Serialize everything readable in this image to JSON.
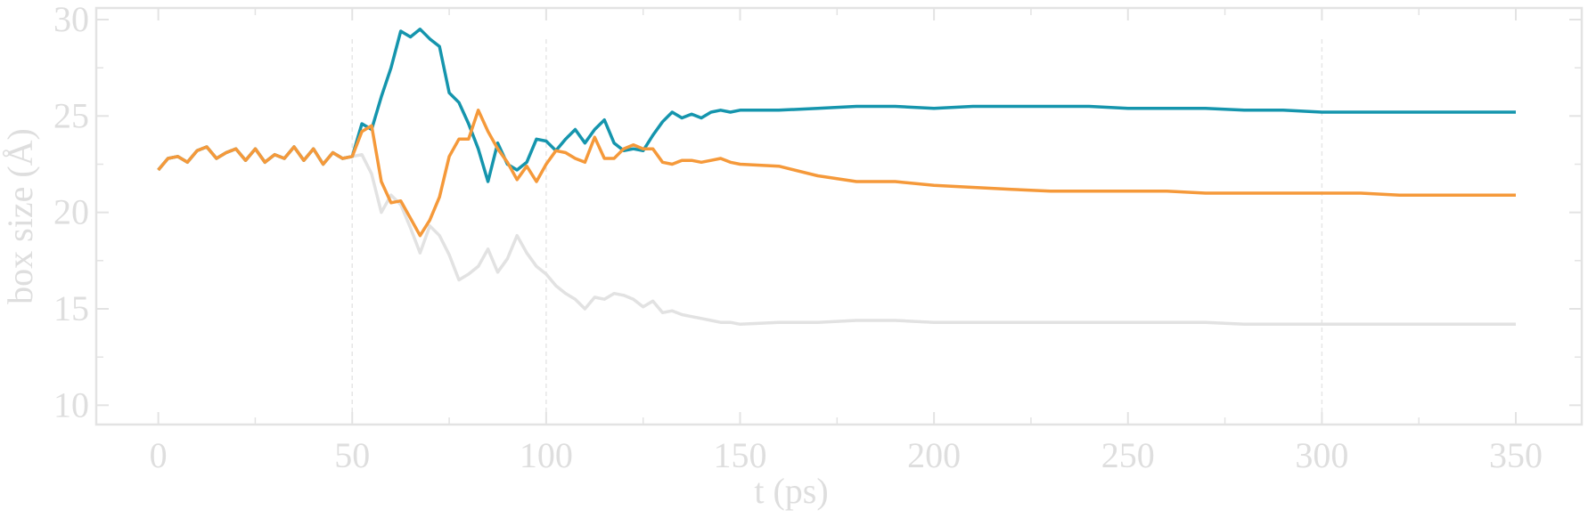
{
  "chart_data": {
    "type": "line",
    "xlabel": "t (ps)",
    "ylabel": "box size (Å)",
    "x": [
      0,
      2.5,
      5,
      7.5,
      10,
      12.5,
      15,
      17.5,
      20,
      22.5,
      25,
      27.5,
      30,
      32.5,
      35,
      37.5,
      40,
      42.5,
      45,
      47.5,
      50,
      52.5,
      55,
      57.5,
      60,
      62.5,
      65,
      67.5,
      70,
      72.5,
      75,
      77.5,
      80,
      82.5,
      85,
      87.5,
      90,
      92.5,
      95,
      97.5,
      100,
      102.5,
      105,
      107.5,
      110,
      112.5,
      115,
      117.5,
      120,
      122.5,
      125,
      127.5,
      130,
      132.5,
      135,
      137.5,
      140,
      142.5,
      145,
      147.5,
      150,
      160,
      170,
      180,
      190,
      200,
      210,
      220,
      230,
      240,
      250,
      260,
      270,
      280,
      290,
      300,
      310,
      320,
      330,
      340,
      350
    ],
    "series": [
      {
        "color": "#e2e2e2",
        "values": [
          22.2,
          22.8,
          22.9,
          22.6,
          23.2,
          23.4,
          22.8,
          23.1,
          23.3,
          22.7,
          23.3,
          22.6,
          23.0,
          22.8,
          23.4,
          22.7,
          23.3,
          22.5,
          23.1,
          22.8,
          22.9,
          23.0,
          22.0,
          20.0,
          20.9,
          20.4,
          19.2,
          17.9,
          19.3,
          18.8,
          17.8,
          16.5,
          16.8,
          17.2,
          18.1,
          16.9,
          17.6,
          18.8,
          17.9,
          17.2,
          16.8,
          16.2,
          15.8,
          15.5,
          15.0,
          15.6,
          15.5,
          15.8,
          15.7,
          15.5,
          15.1,
          15.4,
          14.8,
          14.9,
          14.7,
          14.6,
          14.5,
          14.4,
          14.3,
          14.3,
          14.2,
          14.3,
          14.3,
          14.4,
          14.4,
          14.3,
          14.3,
          14.3,
          14.3,
          14.3,
          14.3,
          14.3,
          14.3,
          14.2,
          14.2,
          14.2,
          14.2,
          14.2,
          14.2,
          14.2,
          14.2
        ]
      },
      {
        "color": "#1595ad",
        "values": [
          22.2,
          22.8,
          22.9,
          22.6,
          23.2,
          23.4,
          22.8,
          23.1,
          23.3,
          22.7,
          23.3,
          22.6,
          23.0,
          22.8,
          23.4,
          22.7,
          23.3,
          22.5,
          23.1,
          22.8,
          22.9,
          24.6,
          24.3,
          26.0,
          27.5,
          29.4,
          29.1,
          29.5,
          29.0,
          28.6,
          26.2,
          25.7,
          24.6,
          23.3,
          21.6,
          23.6,
          22.5,
          22.2,
          22.6,
          23.8,
          23.7,
          23.2,
          23.8,
          24.3,
          23.6,
          24.3,
          24.8,
          23.6,
          23.2,
          23.3,
          23.2,
          24.0,
          24.7,
          25.2,
          24.9,
          25.1,
          24.9,
          25.2,
          25.3,
          25.2,
          25.3,
          25.3,
          25.4,
          25.5,
          25.5,
          25.4,
          25.5,
          25.5,
          25.5,
          25.5,
          25.4,
          25.4,
          25.4,
          25.3,
          25.3,
          25.2,
          25.2,
          25.2,
          25.2,
          25.2,
          25.2
        ]
      },
      {
        "color": "#f5993a",
        "values": [
          22.2,
          22.8,
          22.9,
          22.6,
          23.2,
          23.4,
          22.8,
          23.1,
          23.3,
          22.7,
          23.3,
          22.6,
          23.0,
          22.8,
          23.4,
          22.7,
          23.3,
          22.5,
          23.1,
          22.8,
          22.9,
          24.2,
          24.5,
          21.6,
          20.5,
          20.6,
          19.7,
          18.8,
          19.6,
          20.8,
          22.9,
          23.8,
          23.8,
          25.3,
          24.2,
          23.3,
          22.6,
          21.7,
          22.4,
          21.6,
          22.5,
          23.2,
          23.1,
          22.8,
          22.6,
          23.9,
          22.8,
          22.8,
          23.3,
          23.5,
          23.3,
          23.3,
          22.6,
          22.5,
          22.7,
          22.7,
          22.6,
          22.7,
          22.8,
          22.6,
          22.5,
          22.4,
          21.9,
          21.6,
          21.6,
          21.4,
          21.3,
          21.2,
          21.1,
          21.1,
          21.1,
          21.1,
          21.0,
          21.0,
          21.0,
          21.0,
          21.0,
          20.9,
          20.9,
          20.9,
          20.9
        ]
      }
    ],
    "vlines": [
      50,
      100,
      300
    ],
    "xlim": [
      -16,
      367
    ],
    "ylim": [
      9,
      30.6
    ],
    "xticks": [
      0,
      50,
      100,
      150,
      200,
      250,
      300,
      350
    ],
    "yticks": [
      10,
      15,
      20,
      25,
      30
    ],
    "grid": false
  }
}
